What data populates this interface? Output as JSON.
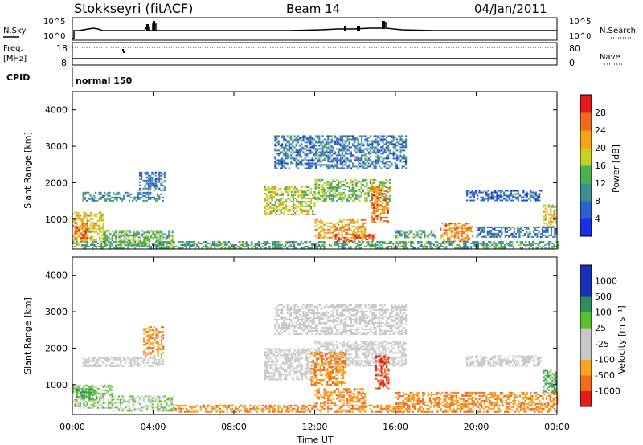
{
  "header": {
    "station": "Stokkseyri (fitACF)",
    "beam": "Beam 14",
    "date": "04/Jan/2011"
  },
  "top_panel": {
    "left_label": "N.Sky",
    "left_ticks": [
      "10^5",
      "10^0"
    ],
    "right_label": "N.Search",
    "right_ticks": [
      "10^5",
      "10^0"
    ]
  },
  "freq_panel": {
    "left_label_1": "Freq.",
    "left_label_2": "[MHz]",
    "left_ticks": [
      "18",
      "8"
    ],
    "right_label": "Nave",
    "right_ticks": [
      "80",
      "0"
    ]
  },
  "cpid_panel": {
    "label": "CPID",
    "value": "normal 150"
  },
  "x_axis": {
    "title": "Time UT",
    "ticks": [
      "00:00",
      "04:00",
      "08:00",
      "12:00",
      "16:00",
      "20:00",
      "00:00"
    ]
  },
  "colors": {
    "power_scale": [
      "#1b2fe8",
      "#2d5fd0",
      "#3f8f8f",
      "#4caf50",
      "#c8d21e",
      "#f2a51c",
      "#f06a1c",
      "#e41a1c"
    ],
    "velocity_scale": [
      "#e41a1c",
      "#f26c1c",
      "#f7a51c",
      "#c8c8c8",
      "#c8c8c8",
      "#5cc02e",
      "#2f8f5f",
      "#1b2fb8"
    ]
  },
  "chart_data": [
    {
      "type": "heatmap",
      "title": "",
      "xlabel": "",
      "ylabel": "Slant Range [km]",
      "y_ticks": [
        "1000",
        "2000",
        "3000",
        "4000"
      ],
      "ylim": [
        180,
        4500
      ],
      "xlim_hours": [
        0,
        24
      ],
      "colorbar": {
        "label": "Power [dB]",
        "ticks": [
          "4",
          "8",
          "12",
          "16",
          "20",
          "24",
          "28"
        ],
        "range": [
          0,
          32
        ]
      },
      "regions": [
        {
          "t0": 0.0,
          "t1": 1.5,
          "r0": 400,
          "r1": 1200,
          "level": 20
        },
        {
          "t0": 0.1,
          "t1": 0.8,
          "r0": 500,
          "r1": 900,
          "level": 26
        },
        {
          "t0": 0.5,
          "t1": 4.5,
          "r0": 1500,
          "r1": 1750,
          "level": 10
        },
        {
          "t0": 3.3,
          "t1": 4.6,
          "r0": 1800,
          "r1": 2300,
          "level": 8
        },
        {
          "t0": 1.5,
          "t1": 5.0,
          "r0": 300,
          "r1": 700,
          "level": 14
        },
        {
          "t0": 9.5,
          "t1": 12.0,
          "r0": 1150,
          "r1": 1900,
          "level": 17
        },
        {
          "t0": 12.0,
          "t1": 15.7,
          "r0": 1500,
          "r1": 2100,
          "level": 15
        },
        {
          "t0": 14.8,
          "t1": 15.6,
          "r0": 900,
          "r1": 1900,
          "level": 24
        },
        {
          "t0": 12.0,
          "t1": 14.5,
          "r0": 500,
          "r1": 1000,
          "level": 22
        },
        {
          "t0": 13.0,
          "t1": 15.0,
          "r0": 400,
          "r1": 600,
          "level": 26
        },
        {
          "t0": 16.0,
          "t1": 18.0,
          "r0": 480,
          "r1": 700,
          "level": 12
        },
        {
          "t0": 18.2,
          "t1": 19.8,
          "r0": 400,
          "r1": 900,
          "level": 24
        },
        {
          "t0": 20.0,
          "t1": 24.0,
          "r0": 500,
          "r1": 800,
          "level": 8
        },
        {
          "t0": 19.5,
          "t1": 23.2,
          "r0": 1500,
          "r1": 1800,
          "level": 6
        },
        {
          "t0": 23.3,
          "t1": 24.0,
          "r0": 800,
          "r1": 1400,
          "level": 20
        },
        {
          "t0": 10.0,
          "t1": 16.5,
          "r0": 2400,
          "r1": 3300,
          "level": 8
        },
        {
          "t0": 0.0,
          "t1": 24.0,
          "r0": 200,
          "r1": 400,
          "level": 12
        }
      ]
    },
    {
      "type": "heatmap",
      "title": "",
      "xlabel": "Time UT",
      "ylabel": "Slant Range [km]",
      "y_ticks": [
        "1000",
        "2000",
        "3000",
        "4000"
      ],
      "ylim": [
        180,
        4500
      ],
      "xlim_hours": [
        0,
        24
      ],
      "colorbar": {
        "label": "Velocity [m s⁻¹]",
        "ticks": [
          "-1000",
          "-500",
          "-100",
          "-25",
          "25",
          "100",
          "500",
          "1000"
        ]
      },
      "regions": [
        {
          "t0": 0.0,
          "t1": 2.0,
          "r0": 350,
          "r1": 1000,
          "level": 100
        },
        {
          "t0": 0.2,
          "t1": 1.2,
          "r0": 600,
          "r1": 900,
          "level": 500
        },
        {
          "t0": 0.5,
          "t1": 4.5,
          "r0": 1500,
          "r1": 1750,
          "level": 0
        },
        {
          "t0": 2.0,
          "t1": 5.0,
          "r0": 300,
          "r1": 700,
          "level": 100
        },
        {
          "t0": 3.5,
          "t1": 4.5,
          "r0": 1800,
          "r1": 2600,
          "level": -100
        },
        {
          "t0": 9.5,
          "t1": 12.0,
          "r0": 1150,
          "r1": 2000,
          "level": 0
        },
        {
          "t0": 12.0,
          "t1": 16.5,
          "r0": 1500,
          "r1": 2200,
          "level": 0
        },
        {
          "t0": 15.0,
          "t1": 15.7,
          "r0": 900,
          "r1": 1800,
          "level": -500
        },
        {
          "t0": 11.8,
          "t1": 13.5,
          "r0": 1000,
          "r1": 1900,
          "level": -100
        },
        {
          "t0": 5.0,
          "t1": 24.0,
          "r0": 250,
          "r1": 450,
          "level": -100
        },
        {
          "t0": 12.0,
          "t1": 14.5,
          "r0": 500,
          "r1": 900,
          "level": -100
        },
        {
          "t0": 16.0,
          "t1": 24.0,
          "r0": 480,
          "r1": 800,
          "level": -100
        },
        {
          "t0": 19.5,
          "t1": 23.2,
          "r0": 1500,
          "r1": 1800,
          "level": 0
        },
        {
          "t0": 23.3,
          "t1": 24.0,
          "r0": 800,
          "r1": 1400,
          "level": 500
        },
        {
          "t0": 10.0,
          "t1": 16.5,
          "r0": 2400,
          "r1": 3200,
          "level": 0
        }
      ]
    }
  ]
}
